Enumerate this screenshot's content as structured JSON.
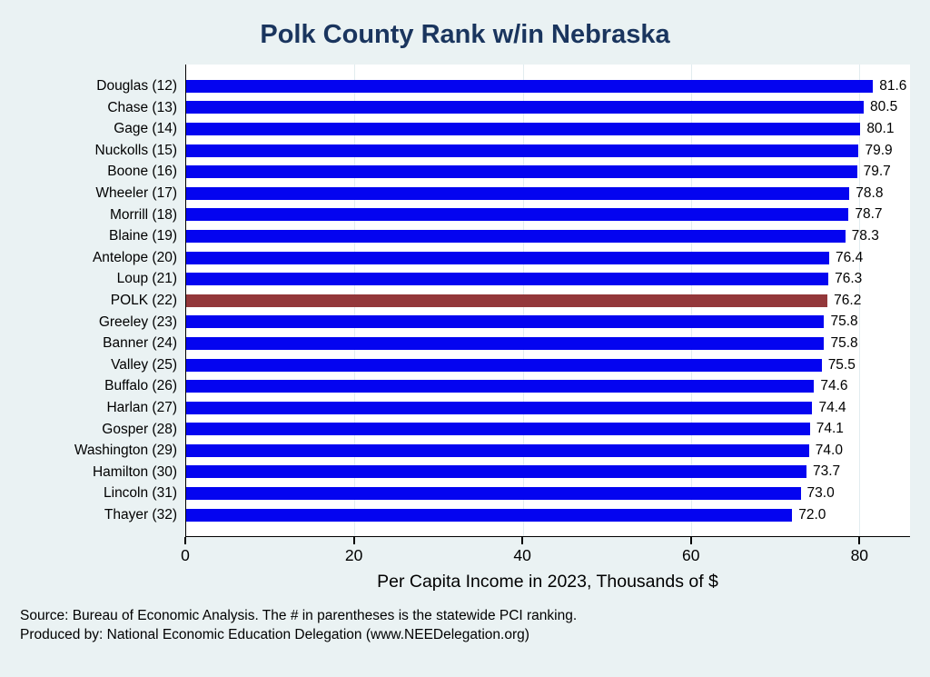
{
  "title": "Polk County Rank w/in Nebraska",
  "xlabel": "Per Capita Income in 2023, Thousands of $",
  "footer": {
    "line1": "Source: Bureau of Economic Analysis. The # in parentheses is the statewide PCI ranking.",
    "line2": "Produced by: National Economic Education Delegation (www.NEEDelegation.org)"
  },
  "colors": {
    "background": "#eaf2f3",
    "bar": "#0404f0",
    "highlight": "#93373a",
    "title_text": "#1a355e",
    "axis": "#000000"
  },
  "chart_data": {
    "type": "bar",
    "orientation": "horizontal",
    "title": "Polk County Rank w/in Nebraska",
    "xlabel": "Per Capita Income in 2023, Thousands of $",
    "xlim": [
      0,
      86
    ],
    "xticks": [
      0,
      20,
      40,
      60,
      80
    ],
    "grid": true,
    "legend": false,
    "categories": [
      "Douglas (12)",
      "Chase (13)",
      "Gage (14)",
      "Nuckolls (15)",
      "Boone (16)",
      "Wheeler (17)",
      "Morrill (18)",
      "Blaine (19)",
      "Antelope (20)",
      "Loup (21)",
      "POLK (22)",
      "Greeley (23)",
      "Banner (24)",
      "Valley (25)",
      "Buffalo (26)",
      "Harlan (27)",
      "Gosper (28)",
      "Washington (29)",
      "Hamilton (30)",
      "Lincoln (31)",
      "Thayer (32)"
    ],
    "values": [
      81.6,
      80.5,
      80.1,
      79.9,
      79.7,
      78.8,
      78.7,
      78.3,
      76.4,
      76.3,
      76.2,
      75.8,
      75.8,
      75.5,
      74.6,
      74.4,
      74.1,
      74.0,
      73.7,
      73.0,
      72.0
    ],
    "display_values": [
      "81.6",
      "80.5",
      "80.1",
      "79.9",
      "79.7",
      "78.8",
      "78.7",
      "78.3",
      "76.4",
      "76.3",
      "76.2",
      "75.8",
      "75.8",
      "75.5",
      "74.6",
      "74.4",
      "74.1",
      "74.0",
      "73.7",
      "73.0",
      "72.0"
    ],
    "highlight_index": 10,
    "highlight_category": "POLK (22)"
  }
}
